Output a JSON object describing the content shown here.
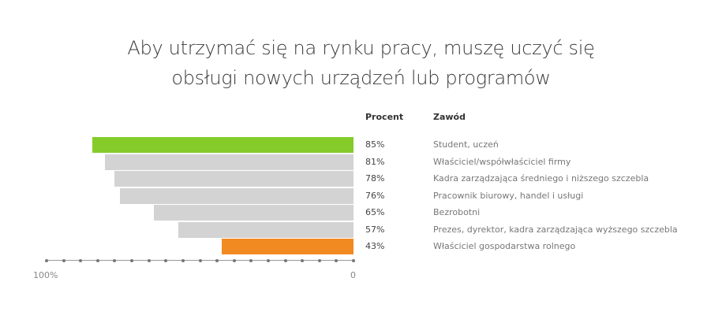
{
  "title_lines": [
    "Aby utrzymać się na rynku pracy, muszę uczyć się",
    "obsługi nowych urządzeń lub programów"
  ],
  "headers": {
    "percent": "Procent",
    "occupation": "Zawód"
  },
  "axis": {
    "left_label": "100%",
    "right_label": "0"
  },
  "colors": {
    "highlight_top": "#85cc2b",
    "highlight_bottom": "#f28a22",
    "default": "#d3d3d3"
  },
  "chart_data": {
    "type": "bar",
    "orientation": "horizontal",
    "title": "Aby utrzymać się na rynku pracy, muszę uczyć się obsługi nowych urządzeń lub programów",
    "categories": [
      "Student, uczeń",
      "Właściciel/współwłaściciel firmy",
      "Kadra zarządzająca średniego i niższego szczebla",
      "Pracownik biurowy, handel i usługi",
      "Bezrobotni",
      "Prezes, dyrektor, kadra zarządzająca wyższego szczebla",
      "Właściciel gospodarstwa rolnego"
    ],
    "values": [
      85,
      81,
      78,
      76,
      65,
      57,
      43
    ],
    "labels": [
      "85%",
      "81%",
      "78%",
      "76%",
      "65%",
      "57%",
      "43%"
    ],
    "xlabel": "",
    "ylabel": "",
    "xlim": [
      100,
      0
    ],
    "column_headers": [
      "Procent",
      "Zawód"
    ]
  }
}
